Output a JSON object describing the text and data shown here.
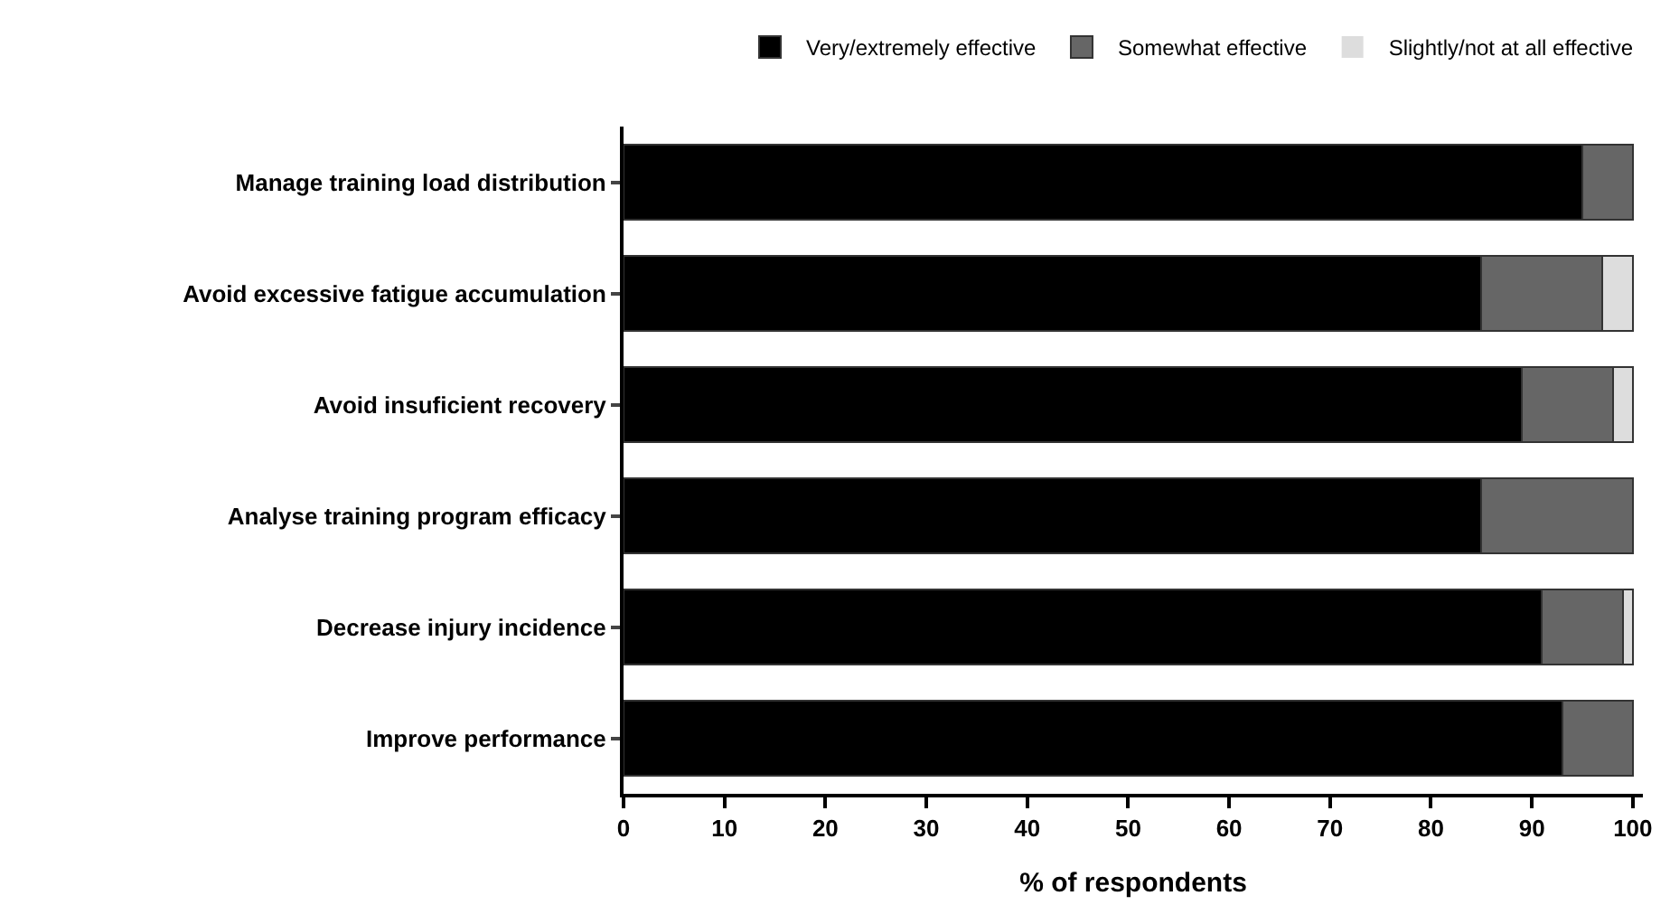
{
  "chart_data": {
    "type": "bar",
    "orientation": "horizontal",
    "stacked": true,
    "xlabel": "% of respondents",
    "categories": [
      "Manage training load distribution",
      "Avoid excessive fatigue accumulation",
      "Avoid insuficient recovery",
      "Analyse training program efficacy",
      "Decrease injury incidence",
      "Improve performance"
    ],
    "series": [
      {
        "name": "Very/extremely effective",
        "color": "#000000",
        "values": [
          95,
          85,
          89,
          85,
          91,
          93
        ]
      },
      {
        "name": "Somewhat effective",
        "color": "#666666",
        "values": [
          5,
          12,
          9,
          15,
          8,
          7
        ]
      },
      {
        "name": "Slightly/not at all effective",
        "color": "#dddddd",
        "values": [
          0,
          3,
          2,
          0,
          1,
          0
        ]
      }
    ],
    "xlim": [
      0,
      101
    ],
    "xticks": [
      0,
      10,
      20,
      30,
      40,
      50,
      60,
      70,
      80,
      90,
      100
    ],
    "grid": false,
    "legend": "top"
  }
}
